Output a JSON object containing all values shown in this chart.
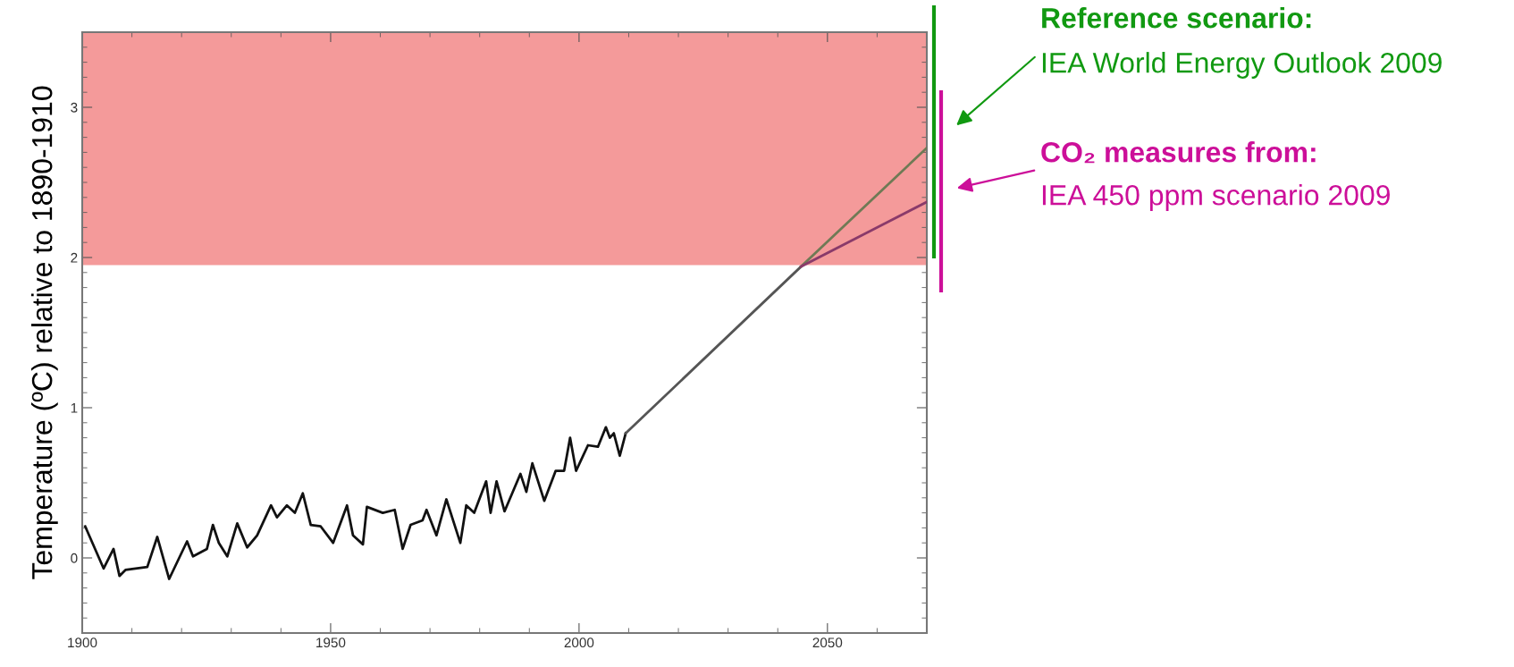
{
  "chart_data": {
    "type": "line",
    "ylabel": "Temperature (ºC) relative to 1890-1910",
    "xlim": [
      1900,
      2070
    ],
    "xticks": [
      1900,
      1950,
      2000,
      2050
    ],
    "ylim": [
      -0.5,
      3.5
    ],
    "yticks": [
      0,
      1,
      2,
      3
    ],
    "grid": false,
    "legend": false,
    "marker": "none",
    "line_style": "solid",
    "bands": [
      {
        "axis": "y",
        "from": 1.95,
        "to": 3.5,
        "color": "#f49a9a"
      }
    ],
    "series": [
      {
        "color": "#111111",
        "x": [
          1900.6,
          1904.3,
          1906.3,
          1907.5,
          1908.7,
          1913.1,
          1915.1,
          1917.5,
          1921.1,
          1922.3,
          1925.1,
          1926.3,
          1927.5,
          1929.2,
          1931.2,
          1933.2,
          1935.2,
          1938.0,
          1939.2,
          1941.2,
          1942.8,
          1944.4,
          1946.0,
          1948.0,
          1950.5,
          1953.3,
          1954.5,
          1956.5,
          1957.3,
          1960.5,
          1962.9,
          1964.5,
          1966.1,
          1968.5,
          1969.3,
          1971.3,
          1973.3,
          1976.1,
          1977.3,
          1978.9,
          1981.3,
          1982.2,
          1983.4,
          1985.0,
          1988.2,
          1989.4,
          1990.6,
          1993.0,
          1995.3,
          1997.0,
          1998.2,
          1999.4,
          2001.8,
          2003.8,
          2005.4,
          2006.2,
          2007.0,
          2008.2,
          2009.4
        ],
        "values": [
          0.21,
          -0.07,
          0.06,
          -0.12,
          -0.08,
          -0.06,
          0.14,
          -0.14,
          0.11,
          0.01,
          0.06,
          0.22,
          0.1,
          0.01,
          0.23,
          0.07,
          0.15,
          0.35,
          0.27,
          0.35,
          0.3,
          0.43,
          0.22,
          0.21,
          0.1,
          0.35,
          0.15,
          0.09,
          0.34,
          0.3,
          0.32,
          0.06,
          0.22,
          0.25,
          0.32,
          0.15,
          0.39,
          0.1,
          0.35,
          0.3,
          0.51,
          0.3,
          0.51,
          0.31,
          0.56,
          0.44,
          0.63,
          0.38,
          0.58,
          0.58,
          0.8,
          0.58,
          0.75,
          0.74,
          0.87,
          0.8,
          0.83,
          0.68,
          0.83
        ]
      },
      {
        "color": "#555555",
        "x": [
          2009.4,
          2044.7
        ],
        "values": [
          0.83,
          1.94
        ]
      },
      {
        "color": "#6f7a55",
        "x": [
          2044.7,
          2070
        ],
        "values": [
          1.94,
          2.73
        ]
      },
      {
        "color": "#8a3a6a",
        "x": [
          2044.7,
          2070
        ],
        "values": [
          1.94,
          2.37
        ]
      }
    ],
    "annotations": [
      "Reference scenario:",
      "IEA World Energy Outlook 2009",
      "CO₂ measures from:",
      "IEA 450 ppm scenario 2009"
    ]
  }
}
